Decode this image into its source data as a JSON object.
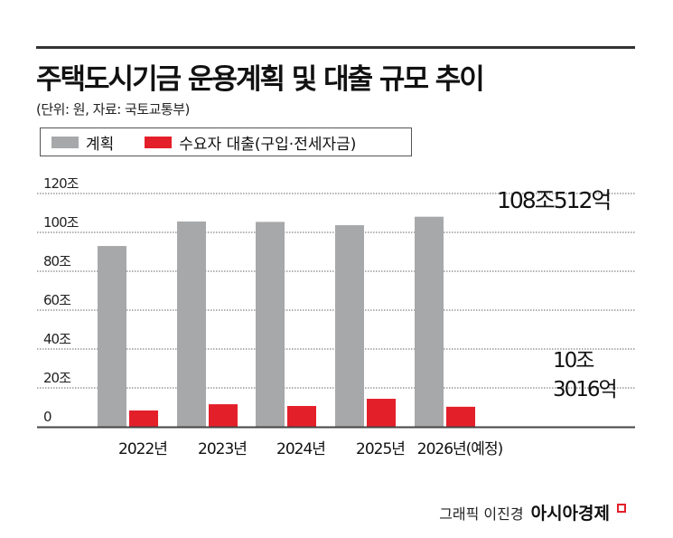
{
  "header": {
    "title": "주택도시기금 운용계획 및 대출 규모 추이",
    "subtitle": "(단위: 원, 자료: 국토교통부)"
  },
  "credit": {
    "byline": "그래픽 이진경",
    "brand": "아시아경제"
  },
  "colors": {
    "plan": "#a7a8aa",
    "loan": "#e3202a"
  },
  "chart_data": {
    "type": "bar",
    "categories": [
      "2022년",
      "2023년",
      "2024년",
      "2025년",
      "2026년(예정)"
    ],
    "series": [
      {
        "name": "계획",
        "values": [
          93,
          105.6,
          105.4,
          103.7,
          108.05
        ]
      },
      {
        "name": "수요자 대출(구입·전세자금)",
        "values": [
          8.4,
          11.6,
          10.7,
          14.4,
          10.3
        ]
      }
    ],
    "yticks": [
      "0",
      "20조",
      "40조",
      "60조",
      "80조",
      "100조",
      "120조"
    ],
    "ylim": [
      0,
      120
    ],
    "grid": true,
    "legend": "top-left",
    "annotations": {
      "plan_2026": "108조512억",
      "loan_2026_line1": "10조",
      "loan_2026_line2": "3016억"
    }
  }
}
